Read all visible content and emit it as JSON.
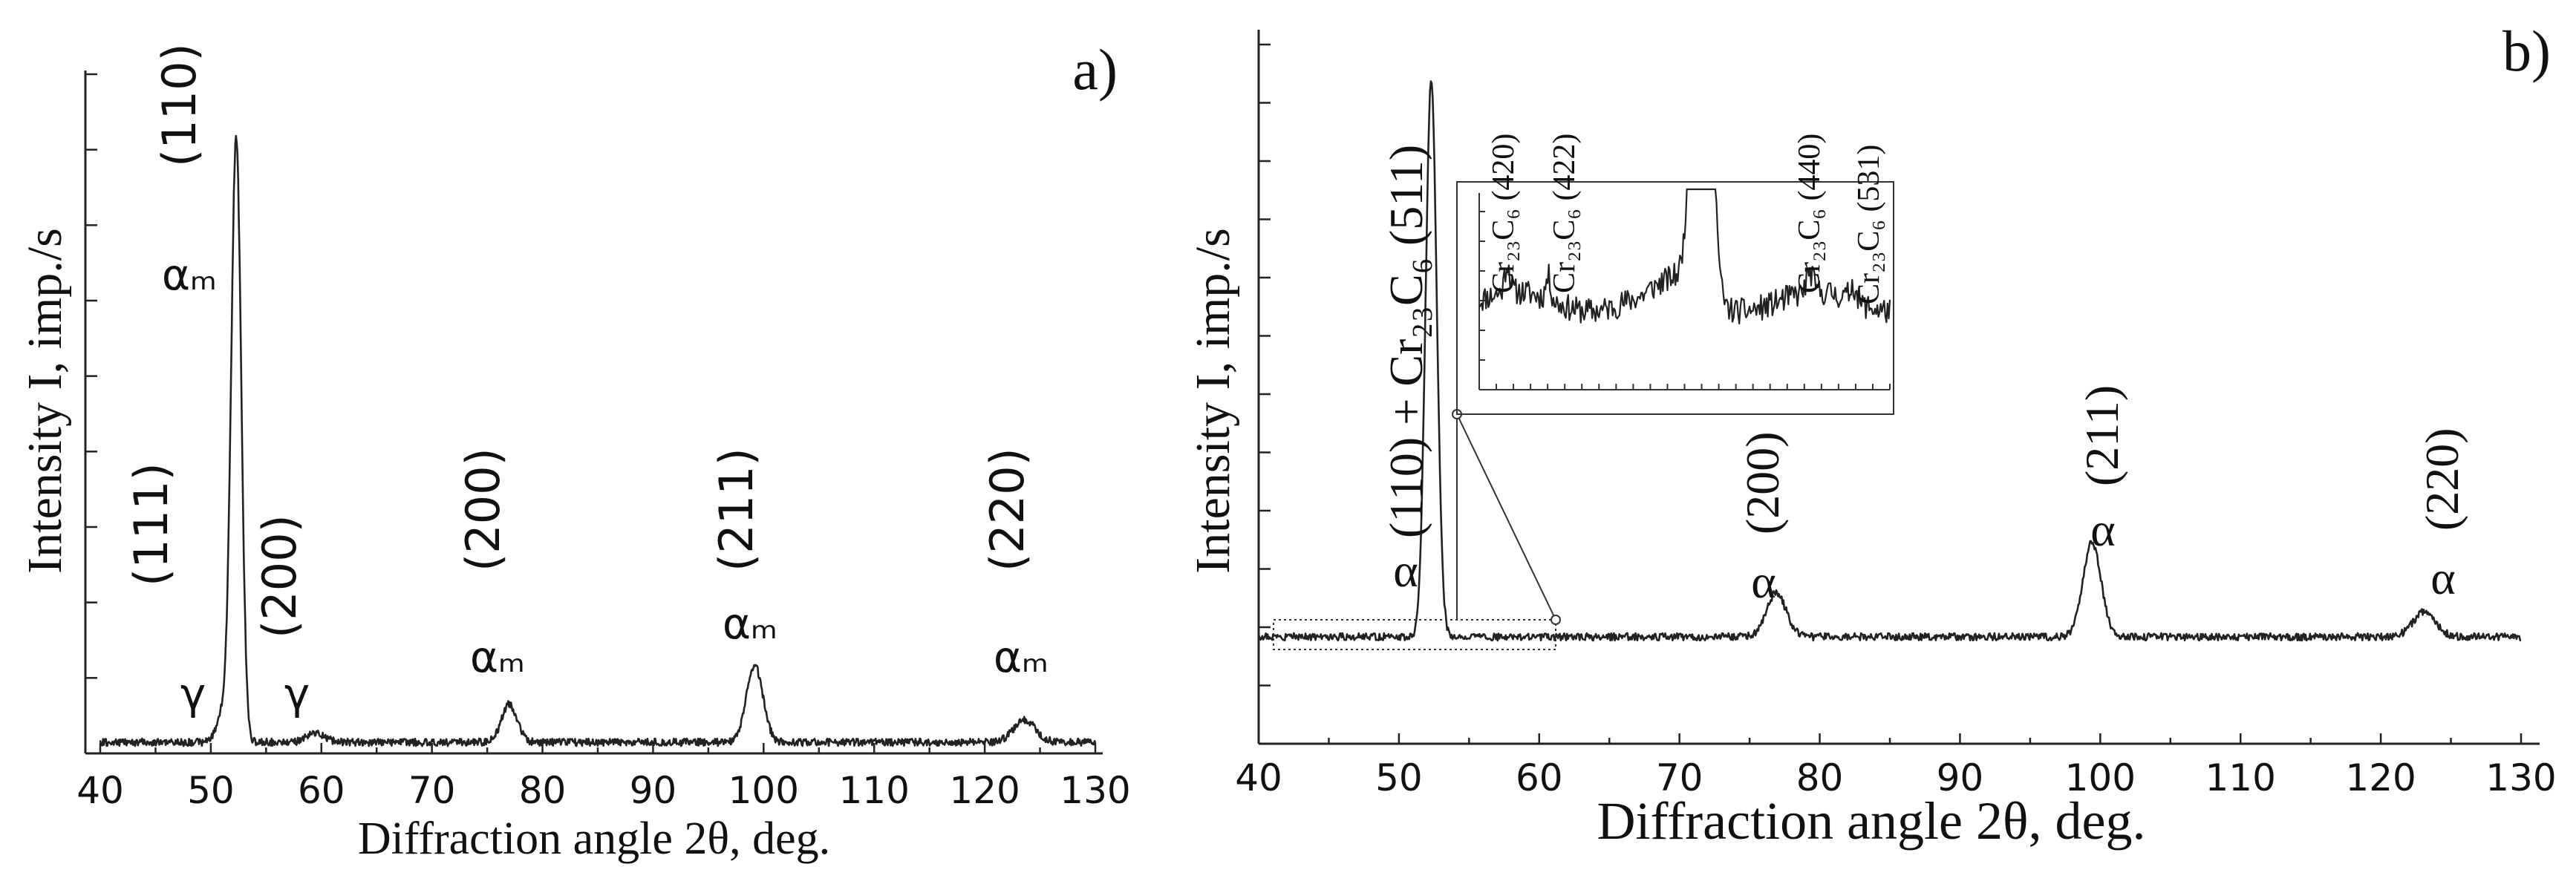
{
  "chart_data": [
    {
      "panel_label": "a)",
      "type": "line",
      "xlabel": "Diffraction angle 2θ, deg.",
      "ylabel": "Intensity I, imp./s",
      "xlim": [
        40,
        130
      ],
      "ylim": [
        0,
        100
      ],
      "x_ticks": [
        "40",
        "50",
        "60",
        "70",
        "80",
        "90",
        "100",
        "110",
        "120",
        "130"
      ],
      "baseline": 2.5,
      "peaks": [
        {
          "x": 51.2,
          "height": 5,
          "width": 0.6
        },
        {
          "x": 52.3,
          "height": 95,
          "width": 0.45
        },
        {
          "x": 59.5,
          "height": 1.5,
          "width": 0.8
        },
        {
          "x": 77.0,
          "height": 6,
          "width": 0.7
        },
        {
          "x": 99.2,
          "height": 12,
          "width": 0.75
        },
        {
          "x": 123.6,
          "height": 3.5,
          "width": 1.0
        }
      ],
      "annotations": [
        {
          "phase": "γ",
          "hkl": "(111)",
          "x": 49.5
        },
        {
          "phase": "αₘ",
          "hkl": "(110)",
          "x": 51.0
        },
        {
          "phase": "γ",
          "hkl": "(200)",
          "x": 60.5
        },
        {
          "phase": "αₘ",
          "hkl": "(200)",
          "x": 77.0
        },
        {
          "phase": "αₘ",
          "hkl": "(211)",
          "x": 99.0
        },
        {
          "phase": "αₘ",
          "hkl": "(220)",
          "x": 123.0
        }
      ]
    },
    {
      "panel_label": "b)",
      "type": "line",
      "xlabel": "Diffraction angle  2θ, deg.",
      "ylabel": "Intensity I, imp./s",
      "xlim": [
        40,
        130
      ],
      "ylim": [
        0,
        100
      ],
      "x_ticks": [
        "40",
        "50",
        "60",
        "70",
        "80",
        "90",
        "100",
        "110",
        "120",
        "130"
      ],
      "baseline": 9.5,
      "peaks": [
        {
          "x": 52.3,
          "height": 89,
          "width": 0.4
        },
        {
          "x": 76.9,
          "height": 7,
          "width": 0.7
        },
        {
          "x": 99.4,
          "height": 15,
          "width": 0.65
        },
        {
          "x": 123.1,
          "height": 4,
          "width": 0.8
        }
      ],
      "annotations": [
        {
          "phase": "α",
          "hkl": "(110) + Cr₂₃C₆ (511)",
          "x": 50.8
        },
        {
          "phase": "α",
          "hkl": "(200)",
          "x": 75.2
        },
        {
          "phase": "α",
          "hkl": "(211)",
          "x": 98.5
        },
        {
          "phase": "α",
          "hkl": "(220)",
          "x": 122.6
        }
      ],
      "inset": {
        "zoom_range": [
          42,
          61
        ],
        "labels": [
          "Cr₂₃C₆ (420)",
          "Cr₂₃C₆ (422)",
          "Cr₂₃C₆ (440)",
          "Cr₂₃C₆ (531)"
        ]
      }
    }
  ]
}
